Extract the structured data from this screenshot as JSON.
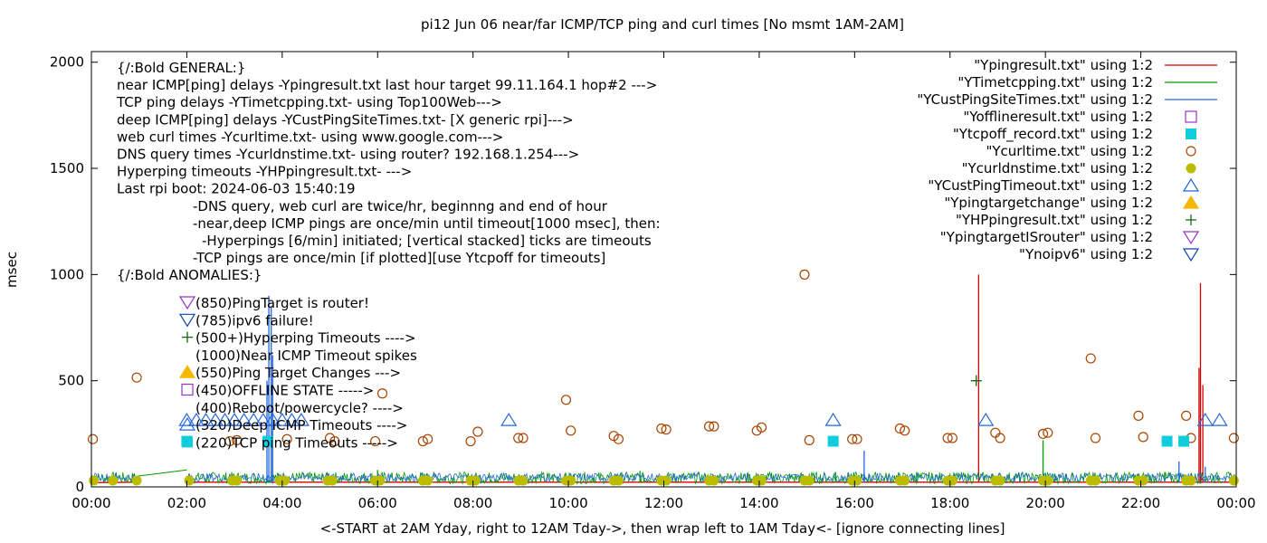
{
  "chart_data": {
    "type": "line",
    "title": "pi12 Jun 06  near/far ICMP/TCP ping and curl times [No msmt 1AM-2AM]",
    "xlabel": "<-START at 2AM Yday, right to 12AM Tday->, then wrap left to 1AM Tday<- [ignore connecting lines]",
    "ylabel": "msec",
    "xlim": [
      0,
      24
    ],
    "ylim": [
      0,
      2050
    ],
    "x_ticks": [
      {
        "v": 0,
        "label": "00:00"
      },
      {
        "v": 2,
        "label": "02:00"
      },
      {
        "v": 4,
        "label": "04:00"
      },
      {
        "v": 6,
        "label": "06:00"
      },
      {
        "v": 8,
        "label": "08:00"
      },
      {
        "v": 10,
        "label": "10:00"
      },
      {
        "v": 12,
        "label": "12:00"
      },
      {
        "v": 14,
        "label": "14:00"
      },
      {
        "v": 16,
        "label": "16:00"
      },
      {
        "v": 18,
        "label": "18:00"
      },
      {
        "v": 20,
        "label": "20:00"
      },
      {
        "v": 22,
        "label": "22:00"
      },
      {
        "v": 24,
        "label": "00:00"
      }
    ],
    "y_ticks": [
      {
        "v": 0,
        "label": "0"
      },
      {
        "v": 500,
        "label": "500"
      },
      {
        "v": 1000,
        "label": "1000"
      },
      {
        "v": 1500,
        "label": "1500"
      },
      {
        "v": 2000,
        "label": "2000"
      }
    ],
    "grid": false,
    "legend_position": "top-right",
    "legend": [
      {
        "label": "\"Ypingresult.txt\" using 1:2",
        "kind": "line",
        "color": "#d40000"
      },
      {
        "label": "\"YTimetcpping.txt\" using 1:2",
        "kind": "line",
        "color": "#009900"
      },
      {
        "label": "\"YCustPingSiteTimes.txt\" using 1:2",
        "kind": "line",
        "color": "#2266dd"
      },
      {
        "label": "\"Yofflineresult.txt\" using 1:2",
        "kind": "square-open",
        "color": "#9933cc"
      },
      {
        "label": "\"Ytcpoff_record.txt\" using 1:2",
        "kind": "square-filled",
        "color": "#11ccdd"
      },
      {
        "label": "\"Ycurltime.txt\" using 1:2",
        "kind": "circle-open",
        "color": "#aa4400"
      },
      {
        "label": "\"Ycurldnstime.txt\" using 1:2",
        "kind": "circle-filled",
        "color": "#bbbb00"
      },
      {
        "label": "\"YCustPingTimeout.txt\" using 1:2",
        "kind": "tri-up-open",
        "color": "#2266dd"
      },
      {
        "label": "\"Ypingtargetchange\" using 1:2",
        "kind": "tri-up-filled",
        "color": "#f5b800"
      },
      {
        "label": "\"YHPpingresult.txt\" using 1:2",
        "kind": "plus",
        "color": "#116611"
      },
      {
        "label": "\"YpingtargetISrouter\" using 1:2",
        "kind": "tri-down-open",
        "color": "#9933cc"
      },
      {
        "label": "\"Ynoipv6\" using 1:2",
        "kind": "tri-down-open",
        "color": "#1144aa"
      }
    ],
    "notes": [
      "{/:Bold GENERAL:}",
      "near ICMP[ping] delays -Ypingresult.txt last hour target 99.11.164.1 hop#2 --->",
      "TCP ping delays -YTimetcpping.txt- using Top100Web--->",
      "deep ICMP[ping] delays -YCustPingSiteTimes.txt- [X generic rpi]--->",
      "web curl times -Ycurltime.txt- using www.google.com--->",
      "DNS query times -Ycurldnstime.txt- using router? 192.168.1.254--->",
      "Hyperping timeouts -YHPpingresult.txt- --->",
      "Last rpi boot: 2024-06-03 15:40:19",
      "-DNS query, web curl are twice/hr, beginnng and end of hour",
      "-near,deep ICMP pings are once/min until timeout[1000 msec], then:",
      "-Hyperpings [6/min] initiated; [vertical stacked] ticks are timeouts",
      "-TCP pings are once/min [if plotted][use Ytcpoff for timeouts]",
      "{/:Bold ANOMALIES:}"
    ],
    "anomalies": [
      {
        "label": "(850)PingTarget is router!",
        "kind": "tri-down-open",
        "color": "#9933cc"
      },
      {
        "label": "(785)ipv6 failure!",
        "kind": "tri-down-open",
        "color": "#1144aa"
      },
      {
        "label": "(500+)Hyperping Timeouts ---->",
        "kind": "plus",
        "color": "#116611"
      },
      {
        "label": "(1000)Near ICMP Timeout spikes",
        "kind": "none",
        "color": "#d40000"
      },
      {
        "label": "(550)Ping Target Changes --->",
        "kind": "tri-up-filled",
        "color": "#f5b800"
      },
      {
        "label": "(450)OFFLINE STATE ----->",
        "kind": "square-open",
        "color": "#9933cc"
      },
      {
        "label": "(400)Reboot/powercycle? ---->",
        "kind": "none",
        "color": "#000000"
      },
      {
        "label": "(320)Deep ICMP Timeouts ---->",
        "kind": "tri-up-open",
        "color": "#2266dd"
      },
      {
        "label": "(220)TCP ping Timeouts ----->",
        "kind": "square-filled",
        "color": "#11ccdd"
      }
    ],
    "series": [
      {
        "name": "\"Ycurltime.txt\" using 1:2",
        "kind": "circle-open",
        "color": "#aa4400",
        "points": [
          [
            0.03,
            225
          ],
          [
            0.95,
            515
          ],
          [
            2.9,
            215
          ],
          [
            3.05,
            220
          ],
          [
            4.1,
            225
          ],
          [
            5.0,
            230
          ],
          [
            5.1,
            215
          ],
          [
            5.95,
            215
          ],
          [
            6.1,
            440
          ],
          [
            6.95,
            215
          ],
          [
            7.05,
            225
          ],
          [
            7.95,
            215
          ],
          [
            8.1,
            260
          ],
          [
            8.95,
            230
          ],
          [
            9.05,
            230
          ],
          [
            9.95,
            410
          ],
          [
            10.05,
            265
          ],
          [
            10.95,
            240
          ],
          [
            11.05,
            225
          ],
          [
            11.95,
            275
          ],
          [
            12.05,
            270
          ],
          [
            12.95,
            285
          ],
          [
            13.05,
            285
          ],
          [
            13.95,
            265
          ],
          [
            14.05,
            280
          ],
          [
            14.95,
            1000
          ],
          [
            15.05,
            220
          ],
          [
            15.95,
            225
          ],
          [
            16.05,
            225
          ],
          [
            16.95,
            275
          ],
          [
            17.05,
            265
          ],
          [
            17.95,
            230
          ],
          [
            18.05,
            230
          ],
          [
            18.95,
            255
          ],
          [
            19.05,
            230
          ],
          [
            19.95,
            250
          ],
          [
            20.05,
            255
          ],
          [
            20.95,
            605
          ],
          [
            21.05,
            230
          ],
          [
            21.95,
            335
          ],
          [
            22.05,
            235
          ],
          [
            22.95,
            335
          ],
          [
            23.05,
            230
          ],
          [
            23.95,
            230
          ]
        ]
      },
      {
        "name": "\"Ycurldnstime.txt\" using 1:2",
        "kind": "circle-filled",
        "color": "#bbbb00",
        "points": [
          [
            0.05,
            30
          ],
          [
            0.45,
            30
          ],
          [
            0.95,
            30
          ],
          [
            2.05,
            30
          ],
          [
            2.95,
            30
          ],
          [
            3.05,
            30
          ],
          [
            3.95,
            30
          ],
          [
            4.05,
            30
          ],
          [
            4.95,
            30
          ],
          [
            5.05,
            30
          ],
          [
            5.95,
            30
          ],
          [
            6.05,
            30
          ],
          [
            6.95,
            30
          ],
          [
            7.05,
            30
          ],
          [
            7.95,
            30
          ],
          [
            8.05,
            30
          ],
          [
            8.95,
            30
          ],
          [
            9.05,
            30
          ],
          [
            9.95,
            30
          ],
          [
            10.05,
            30
          ],
          [
            10.95,
            30
          ],
          [
            11.05,
            30
          ],
          [
            11.95,
            30
          ],
          [
            12.05,
            30
          ],
          [
            12.95,
            30
          ],
          [
            13.05,
            30
          ],
          [
            13.95,
            30
          ],
          [
            14.05,
            30
          ],
          [
            14.95,
            30
          ],
          [
            15.05,
            30
          ],
          [
            15.95,
            30
          ],
          [
            16.05,
            30
          ],
          [
            16.95,
            30
          ],
          [
            17.05,
            30
          ],
          [
            17.95,
            30
          ],
          [
            18.05,
            30
          ],
          [
            18.95,
            30
          ],
          [
            19.05,
            30
          ],
          [
            19.95,
            30
          ],
          [
            20.05,
            30
          ],
          [
            20.95,
            30
          ],
          [
            21.05,
            30
          ],
          [
            21.95,
            30
          ],
          [
            22.05,
            30
          ],
          [
            22.95,
            30
          ],
          [
            23.05,
            30
          ],
          [
            23.95,
            30
          ]
        ]
      },
      {
        "name": "\"Ytcpoff_record.txt\" using 1:2",
        "kind": "square-filled",
        "color": "#11ccdd",
        "points": [
          [
            2.0,
            215
          ],
          [
            3.7,
            215
          ],
          [
            15.55,
            215
          ],
          [
            22.55,
            215
          ],
          [
            22.9,
            215
          ]
        ]
      },
      {
        "name": "\"YCustPingTimeout.txt\" using 1:2",
        "kind": "tri-up-open",
        "color": "#2266dd",
        "points": [
          [
            2.0,
            315
          ],
          [
            2.2,
            315
          ],
          [
            2.4,
            315
          ],
          [
            2.6,
            315
          ],
          [
            2.8,
            315
          ],
          [
            3.0,
            315
          ],
          [
            3.2,
            315
          ],
          [
            3.4,
            315
          ],
          [
            3.6,
            315
          ],
          [
            3.8,
            315
          ],
          [
            4.0,
            315
          ],
          [
            4.2,
            315
          ],
          [
            4.4,
            315
          ],
          [
            8.75,
            315
          ],
          [
            15.55,
            315
          ],
          [
            18.75,
            315
          ],
          [
            23.35,
            315
          ],
          [
            23.65,
            315
          ]
        ]
      },
      {
        "name": "\"YHPpingresult.txt\" using 1:2",
        "kind": "plus",
        "color": "#116611",
        "points": [
          [
            18.55,
            500
          ]
        ]
      },
      {
        "name": "\"Ypingresult.txt\" using 1:2",
        "kind": "line",
        "color": "#d40000",
        "segments": [
          [
            0,
            20,
            0.95,
            22
          ],
          [
            2.0,
            22,
            24,
            22
          ]
        ],
        "spikes": [
          [
            18.6,
            1000
          ],
          [
            23.25,
            960
          ],
          [
            23.22,
            560
          ],
          [
            23.3,
            480
          ]
        ]
      },
      {
        "name": "\"YTimetcpping.txt\" using 1:2",
        "kind": "line",
        "color": "#009900",
        "ramp": [
          [
            0.95,
            50
          ],
          [
            2.0,
            80
          ]
        ],
        "spikes": [
          [
            19.95,
            220
          ],
          [
            15.6,
            70
          ],
          [
            6.0,
            80
          ],
          [
            11.5,
            75
          ],
          [
            17.3,
            70
          ],
          [
            22.5,
            70
          ]
        ]
      },
      {
        "name": "\"YCustPingSiteTimes.txt\" using 1:2",
        "kind": "line",
        "color": "#2266dd",
        "spikes": [
          [
            3.72,
            900
          ],
          [
            3.77,
            850
          ],
          [
            3.8,
            620
          ],
          [
            3.68,
            500
          ],
          [
            16.2,
            170
          ],
          [
            22.8,
            120
          ],
          [
            23.35,
            95
          ]
        ]
      }
    ]
  }
}
